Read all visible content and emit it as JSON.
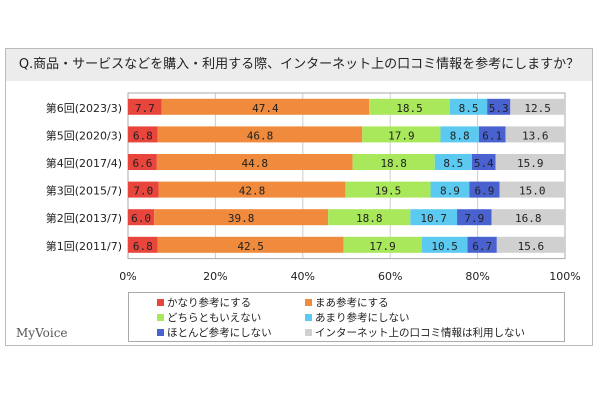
{
  "title": "Q.商品・サービスなどを購入・利用する際、インターネット上の口コミ情報を参考にしますか？",
  "logo": "MyVoice",
  "chart_data": {
    "type": "bar",
    "stacked": true,
    "orientation": "horizontal",
    "categories": [
      "第6回(2023/3)",
      "第5回(2020/3)",
      "第4回(2017/4)",
      "第3回(2015/7)",
      "第2回(2013/7)",
      "第1回(2011/7)"
    ],
    "series": [
      {
        "name": "かなり参考にする",
        "color": "#e8453c",
        "values": [
          7.7,
          6.8,
          6.6,
          7.0,
          6.0,
          6.8
        ]
      },
      {
        "name": "まあ参考にする",
        "color": "#f08a3c",
        "values": [
          47.4,
          46.8,
          44.8,
          42.8,
          39.8,
          42.5
        ]
      },
      {
        "name": "どちらともいえない",
        "color": "#a8e85a",
        "values": [
          18.5,
          17.9,
          18.8,
          19.5,
          18.8,
          17.9
        ]
      },
      {
        "name": "あまり参考にしない",
        "color": "#5ccaf0",
        "values": [
          8.5,
          8.8,
          8.5,
          8.9,
          10.7,
          10.5
        ]
      },
      {
        "name": "ほとんど参考にしない",
        "color": "#4a62d0",
        "values": [
          5.3,
          6.1,
          5.4,
          6.9,
          7.9,
          6.7
        ]
      },
      {
        "name": "インターネット上の口コミ情報は利用しない",
        "color": "#d0d0d0",
        "values": [
          12.5,
          13.6,
          15.9,
          15.0,
          16.8,
          15.6
        ]
      }
    ],
    "xlim": [
      0,
      100
    ],
    "xticks": [
      "0%",
      "20%",
      "40%",
      "60%",
      "80%",
      "100%"
    ],
    "legend_position": "bottom"
  }
}
